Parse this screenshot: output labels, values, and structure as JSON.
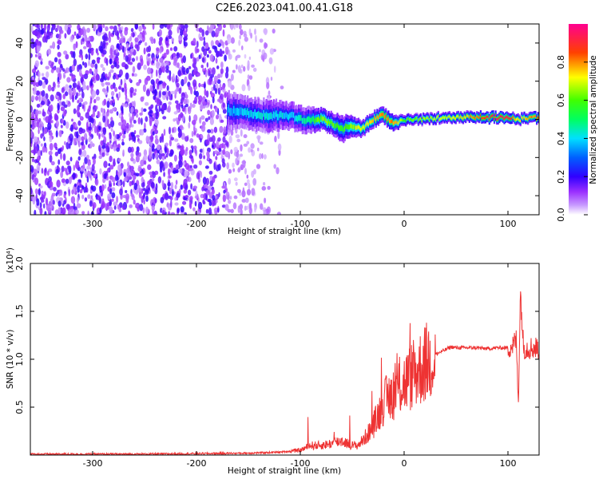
{
  "chart_data": [
    {
      "type": "heatmap",
      "title": "C2E6.2023.041.00.41.G18",
      "xlabel": "Height of straight line (km)",
      "ylabel": "Frequency (Hz)",
      "colorbar_label": "Normalized spectral amplitude",
      "xlim": [
        -360,
        130
      ],
      "ylim": [
        -50,
        50
      ],
      "x_ticks": [
        -300,
        -200,
        -100,
        0,
        100
      ],
      "y_ticks": [
        -40,
        -20,
        0,
        20,
        40
      ],
      "colorbar_range": [
        0.0,
        1.0
      ],
      "colorbar_ticks": [
        0.0,
        0.2,
        0.4,
        0.6,
        0.8
      ],
      "colormap": [
        "#ffffff",
        "#9b30ff",
        "#0000ff",
        "#00ffff",
        "#00ff00",
        "#ffff00",
        "#ff0000",
        "#ff0090"
      ],
      "signal_track": {
        "x": [
          -170,
          -150,
          -130,
          -110,
          -100,
          -90,
          -80,
          -70,
          -60,
          -50,
          -40,
          -30,
          -20,
          -10,
          0,
          20,
          40,
          60,
          80,
          100,
          110,
          130
        ],
        "freq": [
          5,
          3,
          2,
          2,
          0,
          0,
          0,
          -2,
          -5,
          -3,
          -5,
          0,
          2,
          -2,
          0,
          0,
          1,
          1,
          1,
          1,
          0,
          1
        ],
        "spread": [
          7,
          6,
          6,
          5,
          5,
          5,
          4,
          4,
          5,
          4,
          3,
          3,
          3,
          3,
          2,
          2,
          2,
          2,
          2,
          2,
          2,
          2
        ],
        "amp": [
          0.35,
          0.4,
          0.42,
          0.4,
          0.45,
          0.5,
          0.65,
          0.6,
          0.55,
          0.65,
          0.7,
          0.75,
          0.8,
          0.8,
          0.6,
          0.65,
          0.7,
          0.75,
          0.9,
          0.95,
          0.7,
          0.85
        ]
      },
      "noise_x_range": [
        -360,
        -115
      ]
    },
    {
      "type": "line",
      "xlabel": "Height of straight line (km)",
      "ylabel": "SNR (10 * v/v)",
      "y_scale_label": "(x10⁴)",
      "xlim": [
        -360,
        130
      ],
      "ylim": [
        0,
        2.0
      ],
      "x_ticks": [
        -300,
        -200,
        -100,
        0,
        100
      ],
      "y_ticks": [
        0.5,
        1.0,
        1.5,
        2.0
      ],
      "line_color": "#ee3333",
      "series": [
        {
          "x": [
            -360,
            -300,
            -250,
            -200,
            -150,
            -120,
            -100,
            -90,
            -80,
            -70,
            -60,
            -50,
            -45,
            -40,
            -35,
            -30,
            -25,
            -20,
            -15,
            -10,
            -5,
            0,
            10,
            20,
            30,
            40,
            45,
            50,
            60,
            70,
            80,
            90,
            100,
            105,
            108,
            110,
            112,
            115,
            120,
            130
          ],
          "y": [
            0.01,
            0.01,
            0.01,
            0.015,
            0.02,
            0.03,
            0.05,
            0.1,
            0.1,
            0.12,
            0.15,
            0.1,
            0.1,
            0.15,
            0.22,
            0.3,
            0.42,
            0.55,
            0.6,
            0.65,
            0.72,
            0.75,
            0.85,
            0.95,
            1.05,
            1.1,
            1.13,
            1.12,
            1.12,
            1.12,
            1.11,
            1.12,
            1.12,
            1.15,
            1.2,
            0.55,
            1.7,
            1.12,
            1.12,
            1.12
          ]
        }
      ]
    }
  ]
}
